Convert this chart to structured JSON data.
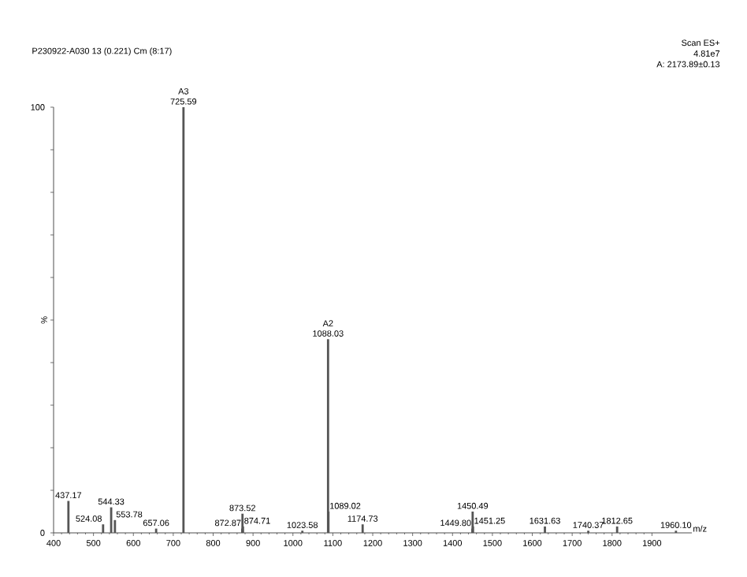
{
  "chart_data": {
    "type": "bar",
    "title": "P230922-A030 13 (0.221) Cm (8:17)",
    "xlabel": "m/z",
    "ylabel": "%",
    "annotations": [
      "Scan ES+",
      "4.81e7",
      "A:   2173.89±0.13",
      {
        "text": "725.59",
        "x": 725.59,
        "y": 100
      },
      {
        "text": "A3",
        "x": 725.59,
        "y": 100
      },
      {
        "text": "1088.03",
        "x": 1088.03,
        "y": 45.5
      },
      {
        "text": "A2",
        "x": 1088.03,
        "y": 45.5
      },
      {
        "text": "437.17",
        "x": 437.17,
        "y": 7.5
      },
      {
        "text": "524.08",
        "x": 524.08,
        "y": 2
      },
      {
        "text": "544.33",
        "x": 544.33,
        "y": 6
      },
      {
        "text": "553.78",
        "x": 553.78,
        "y": 3
      },
      {
        "text": "657.06",
        "x": 657.06,
        "y": 1
      },
      {
        "text": "872.87",
        "x": 872.87,
        "y": 1
      },
      {
        "text": "873.52",
        "x": 873.52,
        "y": 4.5
      },
      {
        "text": "874.71",
        "x": 874.71,
        "y": 1.5
      },
      {
        "text": "1023.58",
        "x": 1023.58,
        "y": 0.5
      },
      {
        "text": "1089.02",
        "x": 1089.02,
        "y": 5
      },
      {
        "text": "1174.73",
        "x": 1174.73,
        "y": 2
      },
      {
        "text": "1449.80",
        "x": 1449.8,
        "y": 1
      },
      {
        "text": "1450.49",
        "x": 1450.49,
        "y": 5
      },
      {
        "text": "1451.25",
        "x": 1451.25,
        "y": 1.5
      },
      {
        "text": "1631.63",
        "x": 1631.63,
        "y": 1.5
      },
      {
        "text": "1740.37",
        "x": 1740.37,
        "y": 0.5
      },
      {
        "text": "1812.65",
        "x": 1812.65,
        "y": 1.5
      },
      {
        "text": "1960.10",
        "x": 1960.1,
        "y": 0.5
      }
    ],
    "x": [
      437.17,
      524.08,
      544.33,
      553.78,
      657.06,
      725.59,
      872.87,
      873.52,
      874.71,
      1023.58,
      1088.03,
      1089.02,
      1174.73,
      1449.8,
      1450.49,
      1451.25,
      1631.63,
      1740.37,
      1812.65,
      1960.1
    ],
    "values": [
      7.5,
      2,
      6,
      3,
      1,
      100,
      1,
      4.5,
      1.5,
      0.5,
      45.5,
      5,
      2,
      1,
      5,
      1.5,
      1.5,
      0.5,
      1.5,
      0.5
    ],
    "color": "#555555",
    "xlim": [
      400,
      2000
    ],
    "ylim": [
      0,
      100
    ],
    "xticks": [
      400,
      500,
      600,
      700,
      800,
      900,
      1000,
      1100,
      1200,
      1300,
      1400,
      1500,
      1600,
      1700,
      1800,
      1900
    ],
    "yticks": [
      0,
      {
        "value": 10,
        "label": null
      },
      {
        "value": 20,
        "label": null
      },
      {
        "value": 30,
        "label": null
      },
      {
        "value": 40,
        "label": null
      },
      {
        "value": 50,
        "label": null
      },
      {
        "value": 60,
        "label": null
      },
      {
        "value": 70,
        "label": null
      },
      {
        "value": 80,
        "label": null
      },
      {
        "value": 90,
        "label": null
      },
      100
    ]
  }
}
